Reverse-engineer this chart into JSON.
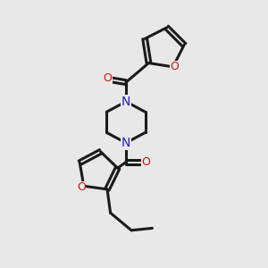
{
  "bg_color": "#e8e8e8",
  "bond_color": "#1a1a1a",
  "n_color": "#2020cc",
  "o_color": "#cc1010",
  "bond_width": 2.2,
  "figsize": [
    3.0,
    3.0
  ],
  "dpi": 100,
  "xlim": [
    0,
    10
  ],
  "ylim": [
    0,
    10
  ]
}
